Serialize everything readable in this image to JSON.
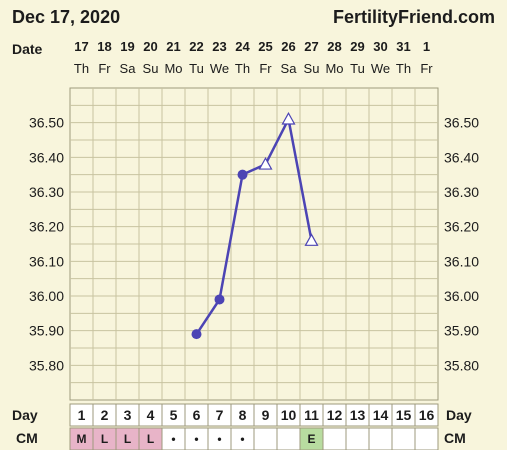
{
  "header": {
    "date": "Dec 17, 2020",
    "brand": "FertilityFriend.com"
  },
  "labels": {
    "date_row": "Date",
    "day_row": "Day",
    "cm_row": "CM"
  },
  "colors": {
    "line": "#4c44b4",
    "grid": "#c8c3a0",
    "cell_m": "#e8b4c8",
    "cell_l": "#e8b4c8",
    "cell_e": "#b8dca0",
    "cell_blank": "#ffffff"
  },
  "chart_data": {
    "type": "line",
    "dates": [
      "17",
      "18",
      "19",
      "20",
      "21",
      "22",
      "23",
      "24",
      "25",
      "26",
      "27",
      "28",
      "29",
      "30",
      "31",
      "1"
    ],
    "weekdays": [
      "Th",
      "Fr",
      "Sa",
      "Su",
      "Mo",
      "Tu",
      "We",
      "Th",
      "Fr",
      "Sa",
      "Su",
      "Mo",
      "Tu",
      "We",
      "Th",
      "Fr"
    ],
    "cycle_days": [
      "1",
      "2",
      "3",
      "4",
      "5",
      "6",
      "7",
      "8",
      "9",
      "10",
      "11",
      "12",
      "13",
      "14",
      "15",
      "16"
    ],
    "ylim": [
      35.7,
      36.6
    ],
    "y_ticks": [
      "35.80",
      "35.90",
      "36.00",
      "36.10",
      "36.20",
      "36.30",
      "36.40",
      "36.50"
    ],
    "series": [
      {
        "points": [
          {
            "day": 6,
            "temp": 35.89,
            "marker": "circle"
          },
          {
            "day": 7,
            "temp": 35.99,
            "marker": "circle"
          },
          {
            "day": 8,
            "temp": 36.35,
            "marker": "circle"
          },
          {
            "day": 9,
            "temp": 36.38,
            "marker": "triangle"
          },
          {
            "day": 10,
            "temp": 36.51,
            "marker": "triangle"
          },
          {
            "day": 11,
            "temp": 36.16,
            "marker": "triangle"
          }
        ]
      }
    ],
    "cervical_mucus": [
      "M",
      "L",
      "L",
      "L",
      "•",
      "•",
      "•",
      "•",
      "",
      "",
      "E",
      "",
      "",
      "",
      "",
      ""
    ],
    "grid": true
  }
}
